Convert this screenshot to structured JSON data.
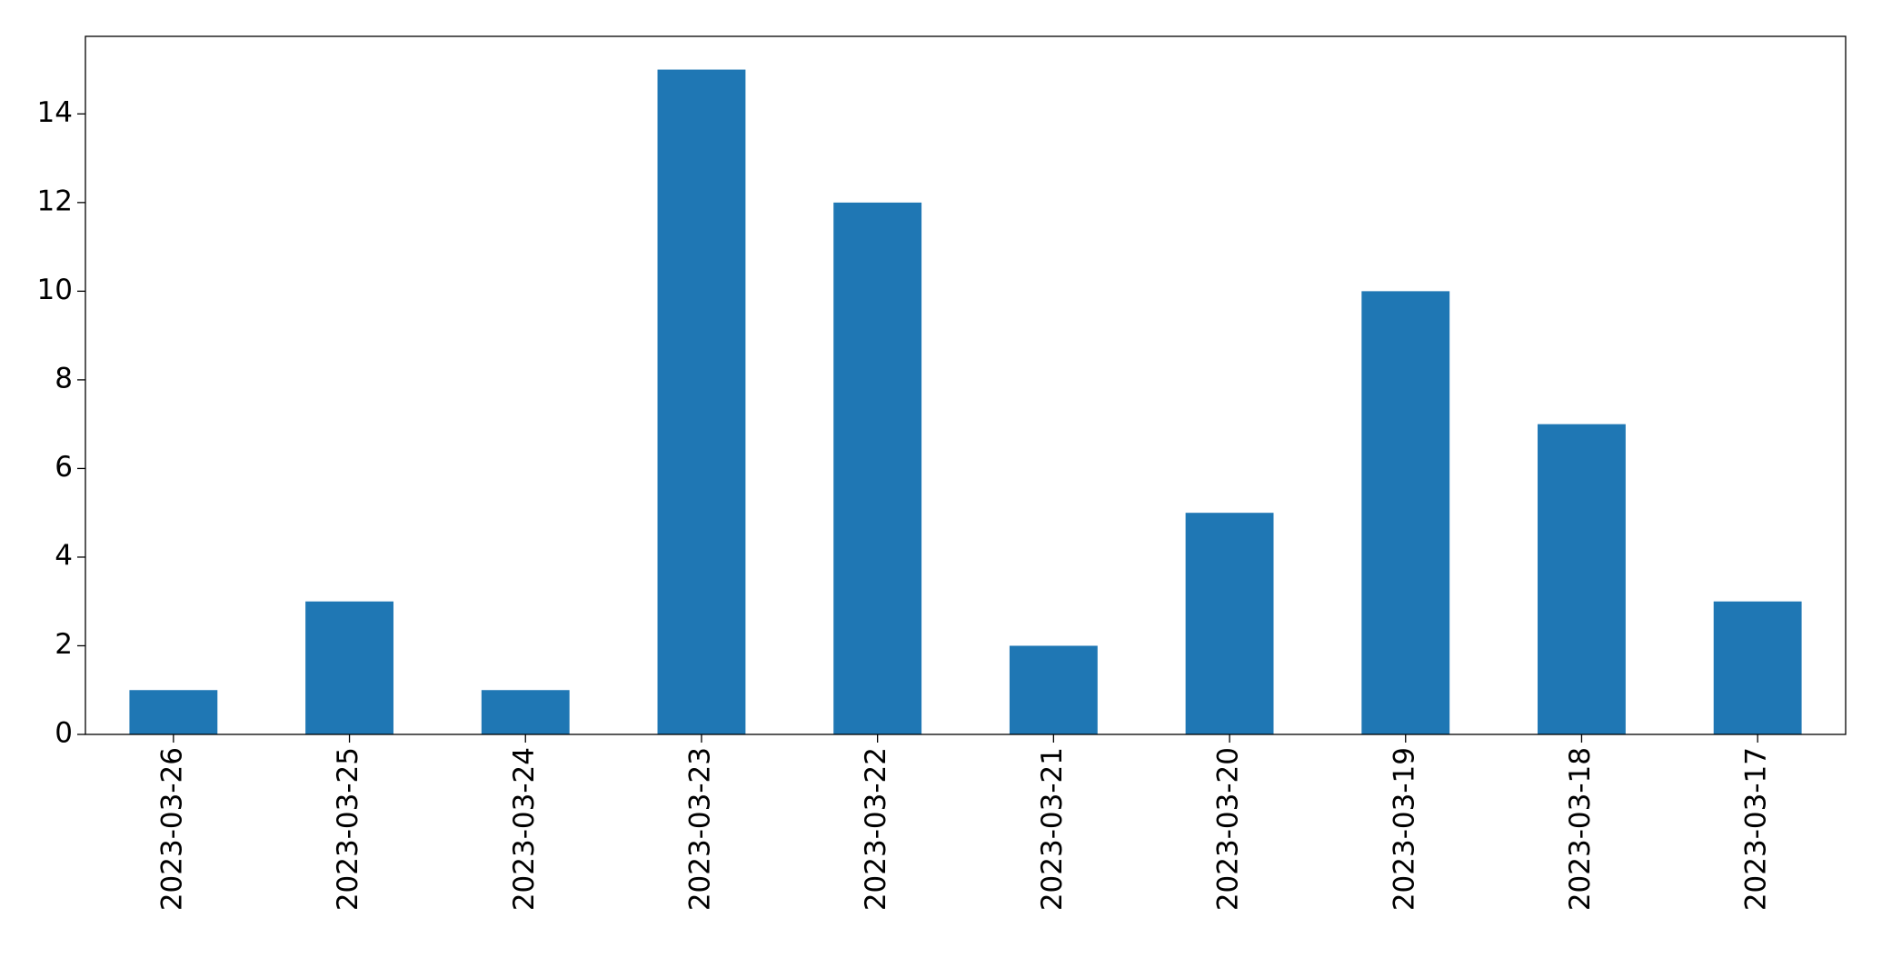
{
  "chart_data": {
    "type": "bar",
    "categories": [
      "2023-03-26",
      "2023-03-25",
      "2023-03-24",
      "2023-03-23",
      "2023-03-22",
      "2023-03-21",
      "2023-03-20",
      "2023-03-19",
      "2023-03-18",
      "2023-03-17"
    ],
    "values": [
      1,
      3,
      1,
      15,
      12,
      2,
      5,
      10,
      7,
      3
    ],
    "color": "#1f77b4",
    "ylim": [
      0,
      15.75
    ],
    "yticks": [
      0,
      2,
      4,
      6,
      8,
      10,
      12,
      14
    ],
    "grid": false
  }
}
